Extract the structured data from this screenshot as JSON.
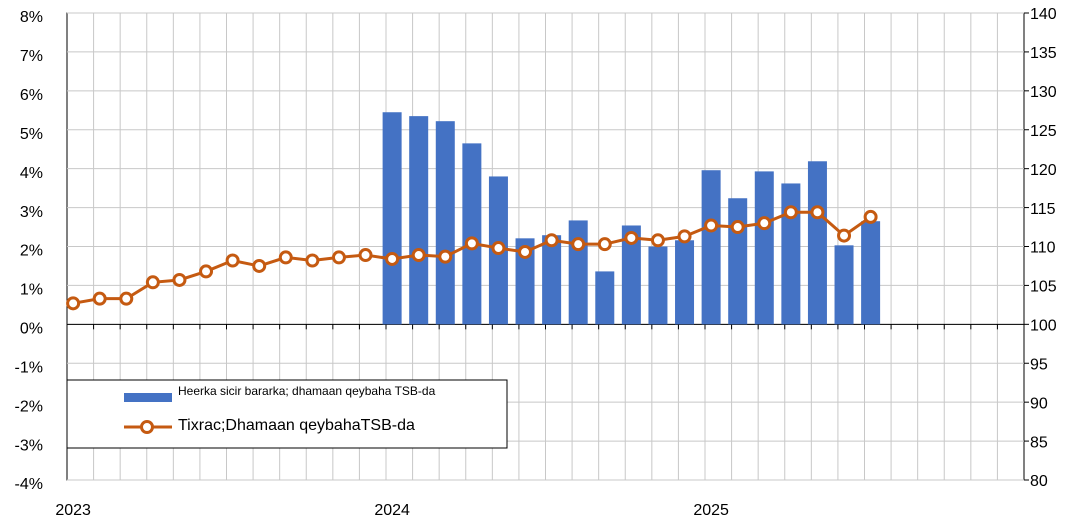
{
  "chart_data": {
    "type": "bar_line",
    "categories": [
      "2023",
      null,
      null,
      null,
      null,
      null,
      null,
      null,
      null,
      null,
      null,
      null,
      "2024",
      null,
      null,
      null,
      null,
      null,
      null,
      null,
      null,
      null,
      null,
      null,
      "2025",
      null,
      null,
      null,
      null,
      null,
      null,
      null,
      null,
      null,
      null,
      null
    ],
    "series": [
      {
        "name": "Heerka sicir bararka; dhamaan qeybaha TSB-da",
        "kind": "bar",
        "color": "#4472c4",
        "values": [
          null,
          null,
          null,
          null,
          null,
          null,
          null,
          null,
          null,
          null,
          null,
          null,
          5.45,
          5.35,
          5.22,
          4.65,
          3.8,
          2.21,
          2.29,
          2.67,
          1.36,
          2.54,
          2.0,
          2.16,
          3.96,
          3.24,
          3.93,
          3.62,
          4.19,
          2.03,
          2.65,
          null,
          null,
          null,
          null,
          null
        ]
      },
      {
        "name": "Tixrac;Dhamaan qeybahaTSB-da",
        "kind": "line",
        "axis": "y2",
        "color": "#c55a11",
        "values": [
          102.7,
          103.3,
          103.3,
          105.4,
          105.7,
          106.8,
          108.2,
          107.5,
          108.6,
          108.2,
          108.6,
          108.9,
          108.4,
          108.9,
          108.7,
          110.4,
          109.8,
          109.3,
          110.8,
          110.3,
          110.3,
          111.1,
          110.8,
          111.3,
          112.7,
          112.5,
          113.0,
          114.4,
          114.4,
          111.4,
          113.8,
          null,
          null,
          null,
          null,
          null
        ]
      }
    ],
    "ylim": [
      -4,
      8
    ],
    "yticks": [
      {
        "value": -4,
        "label": "-4%"
      },
      {
        "value": -3,
        "label": "-3%"
      },
      {
        "value": -2,
        "label": "-2%"
      },
      {
        "value": -1,
        "label": "-1%"
      },
      {
        "value": 0,
        "label": "0%"
      },
      {
        "value": 1,
        "label": "1%"
      },
      {
        "value": 2,
        "label": "2%"
      },
      {
        "value": 3,
        "label": "3%"
      },
      {
        "value": 4,
        "label": "4%"
      },
      {
        "value": 5,
        "label": "5%"
      },
      {
        "value": 6,
        "label": "6%"
      },
      {
        "value": 7,
        "label": "7%"
      },
      {
        "value": 8,
        "label": "8%"
      }
    ],
    "y2lim": [
      80,
      140
    ],
    "y2ticks": [
      80,
      85,
      90,
      95,
      100,
      105,
      110,
      115,
      120,
      125,
      130,
      135,
      140
    ],
    "grid": true,
    "legend": "lower left"
  }
}
